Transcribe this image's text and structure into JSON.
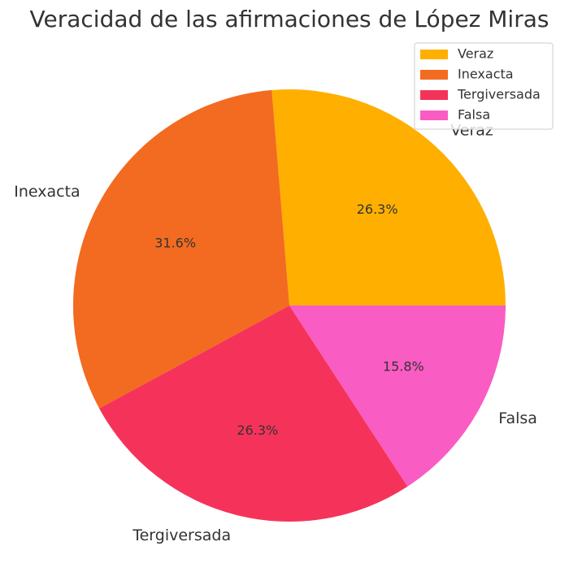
{
  "chart_data": {
    "type": "pie",
    "title": "Veracidad de las afirmaciones de López Miras",
    "categories": [
      "Veraz",
      "Inexacta",
      "Tergiversada",
      "Falsa"
    ],
    "values": [
      26.3,
      31.6,
      26.3,
      15.8
    ],
    "value_labels": [
      "26.3%",
      "31.6%",
      "26.3%",
      "15.8%"
    ],
    "colors": [
      "#FFAF00",
      "#F26B21",
      "#F5335A",
      "#F95CC3"
    ],
    "start_angle": 0,
    "direction": "counterclockwise",
    "legend": {
      "position": "top-right",
      "entries": [
        "Veraz",
        "Inexacta",
        "Tergiversada",
        "Falsa"
      ]
    }
  }
}
